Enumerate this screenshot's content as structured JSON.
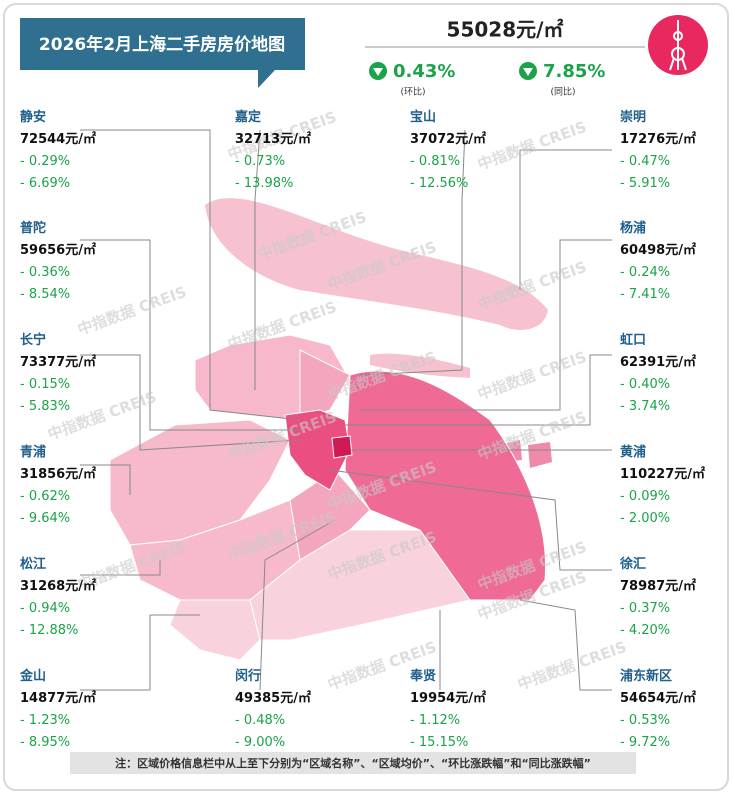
{
  "header": {
    "title": "2026年2月上海二手房房价地图",
    "avg_price": "55028元/㎡",
    "mom": "0.43%",
    "mom_label": "(环比)",
    "yoy": "7.85%",
    "yoy_label": "(同比)"
  },
  "watermark": "中指数据 CREIS",
  "districts": [
    {
      "name": "静安",
      "price": "72544元/㎡",
      "mom": "- 0.29%",
      "yoy": "- 6.69%"
    },
    {
      "name": "普陀",
      "price": "59656元/㎡",
      "mom": "- 0.36%",
      "yoy": "- 8.54%"
    },
    {
      "name": "长宁",
      "price": "73377元/㎡",
      "mom": "- 0.15%",
      "yoy": "- 5.83%"
    },
    {
      "name": "青浦",
      "price": "31856元/㎡",
      "mom": "- 0.62%",
      "yoy": "- 9.64%"
    },
    {
      "name": "松江",
      "price": "31268元/㎡",
      "mom": "- 0.94%",
      "yoy": "- 12.88%"
    },
    {
      "name": "金山",
      "price": "14877元/㎡",
      "mom": "- 1.23%",
      "yoy": "- 8.95%"
    },
    {
      "name": "嘉定",
      "price": "32713元/㎡",
      "mom": "- 0.73%",
      "yoy": "- 13.98%"
    },
    {
      "name": "闵行",
      "price": "49385元/㎡",
      "mom": "- 0.48%",
      "yoy": "- 9.00%"
    },
    {
      "name": "宝山",
      "price": "37072元/㎡",
      "mom": "- 0.81%",
      "yoy": "- 12.56%"
    },
    {
      "name": "奉贤",
      "price": "19954元/㎡",
      "mom": "- 1.12%",
      "yoy": "- 15.15%"
    },
    {
      "name": "崇明",
      "price": "17276元/㎡",
      "mom": "- 0.47%",
      "yoy": "- 5.91%"
    },
    {
      "name": "杨浦",
      "price": "60498元/㎡",
      "mom": "- 0.24%",
      "yoy": "- 7.41%"
    },
    {
      "name": "虹口",
      "price": "62391元/㎡",
      "mom": "- 0.40%",
      "yoy": "- 3.74%"
    },
    {
      "name": "黄浦",
      "price": "110227元/㎡",
      "mom": "- 0.09%",
      "yoy": "- 2.00%"
    },
    {
      "name": "徐汇",
      "price": "78987元/㎡",
      "mom": "- 0.37%",
      "yoy": "- 4.20%"
    },
    {
      "name": "浦东新区",
      "price": "54654元/㎡",
      "mom": "- 0.53%",
      "yoy": "- 9.72%"
    }
  ],
  "footnote": "注：区域价格信息栏中从上至下分别为“区域名称”、“区域均价”、“环比涨跌幅”和“同比涨跌幅”"
}
